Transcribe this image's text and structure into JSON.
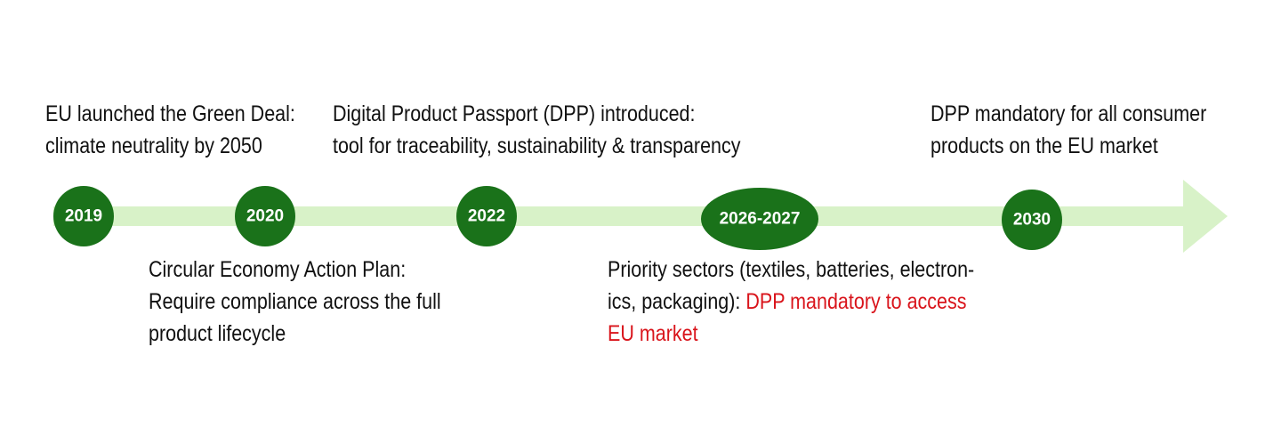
{
  "timeline": {
    "colors": {
      "arrow": "#d8f2c8",
      "milestone": "#1a721a",
      "milestone_text": "#ffffff",
      "caption_text": "#111111",
      "highlight_text": "#d9141b"
    },
    "milestones": [
      {
        "year": "2019",
        "position": "above",
        "lines": [
          "EU launched the Green Deal:",
          "climate neutrality by 2050"
        ]
      },
      {
        "year": "2020",
        "position": "below",
        "lines": [
          "Circular Economy Action Plan:",
          "Require compliance across the full",
          "product lifecycle"
        ]
      },
      {
        "year": "2022",
        "position": "above",
        "lines": [
          "Digital Product Passport (DPP) introduced:",
          "tool for traceability, sustainability & transparency"
        ]
      },
      {
        "year": "2026-2027",
        "position": "below",
        "line1": "Priority sectors (textiles, batteries, electron-",
        "line2_plain": "ics, packaging): ",
        "line2_highlight": "DPP mandatory to access",
        "line3_highlight": "EU market"
      },
      {
        "year": "2030",
        "position": "above",
        "lines": [
          "DPP mandatory for all consumer",
          "products on the EU market"
        ]
      }
    ]
  }
}
